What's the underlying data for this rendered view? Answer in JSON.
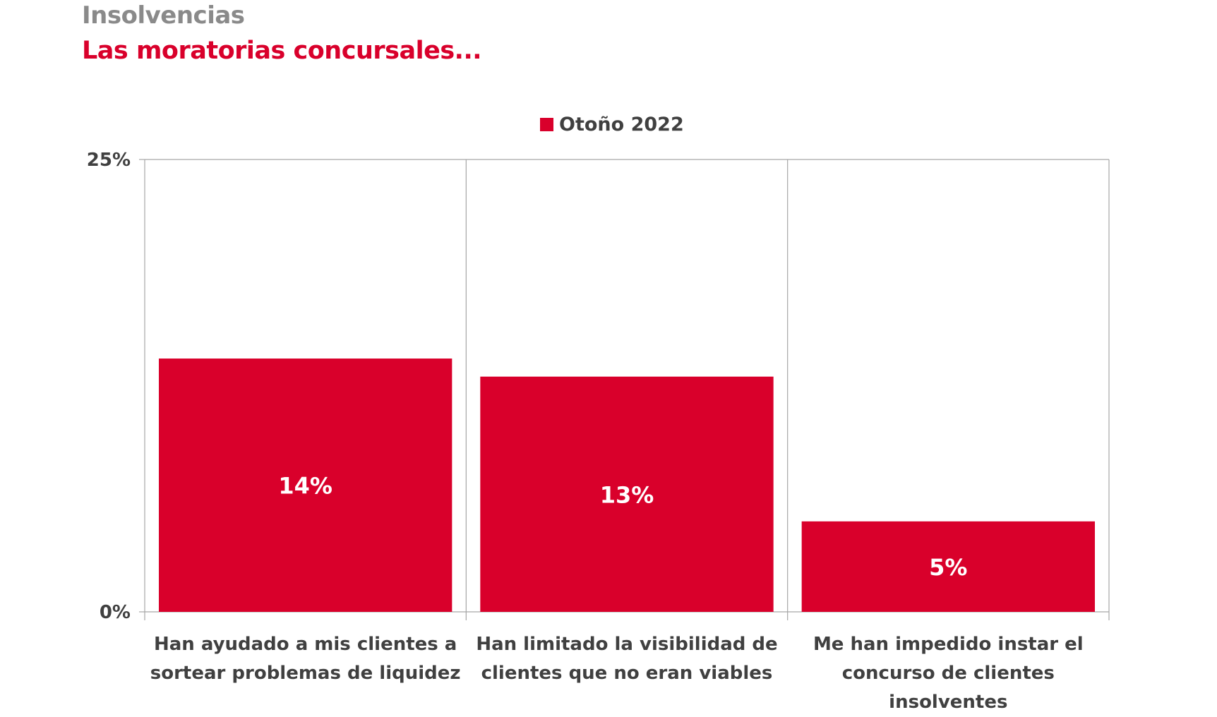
{
  "chart_data": {
    "type": "bar",
    "title": "Insolvencias",
    "subtitle": "Las moratorias concursales...",
    "categories": [
      "Han ayudado a mis clientes a\nsortear problemas de liquidez",
      "Han limitado la visibilidad de\nclientes que no eran viables",
      "Me han impedido instar el\nconcurso de clientes insolventes"
    ],
    "series": [
      {
        "name": "Otoño 2022",
        "values": [
          14,
          13,
          5
        ],
        "labels": [
          "14%",
          "13%",
          "5%"
        ],
        "color": "#d9002b"
      }
    ],
    "ylim": [
      0,
      25
    ],
    "ytick_labels": [
      "0%",
      "25%"
    ],
    "grid": "vertical category separators",
    "legend_position": "top-center"
  }
}
